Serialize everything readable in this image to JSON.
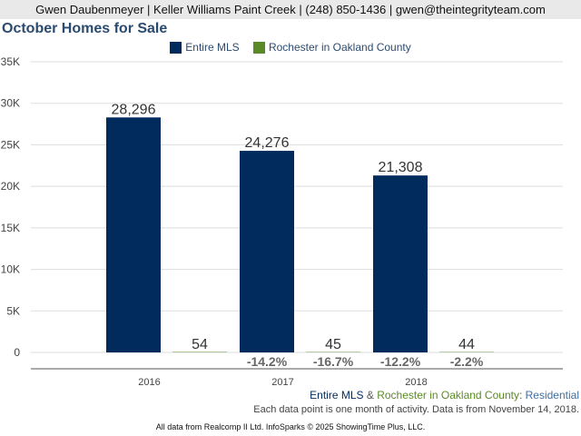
{
  "header": {
    "text": "Gwen Daubenmeyer | Keller Williams Paint Creek | (248) 850-1436 | gwen@theintegrityteam.com"
  },
  "legend": {
    "items": [
      {
        "label": "Entire MLS",
        "color": "#002b5c"
      },
      {
        "label": "Rochester in Oakland County",
        "color": "#5a8a28"
      }
    ]
  },
  "subtitle": {
    "part1": "Entire MLS",
    "amp": " & ",
    "part2": "Rochester in Oakland County",
    "colon": ": ",
    "property_type": "Residential"
  },
  "note": "Each data point is one month of activity. Data is from November 14, 2018.",
  "footer": "All data from Realcomp II Ltd. InfoSparks © 2025 ShowingTime Plus, LLC.",
  "chart_data": {
    "type": "bar",
    "title": "October Homes for Sale",
    "categories": [
      "2016",
      "2017",
      "2018"
    ],
    "y_ticks": [
      "0",
      "5K",
      "10K",
      "15K",
      "20K",
      "25K",
      "30K",
      "35K"
    ],
    "ylim": [
      0,
      35000
    ],
    "grid": true,
    "legend_position": "top-center",
    "series": [
      {
        "name": "Entire MLS",
        "color": "#002b5c",
        "values": [
          28296,
          24276,
          21308
        ],
        "labels": [
          "28,296",
          "24,276",
          "21,308"
        ],
        "changes": [
          "",
          "-14.2%",
          "-12.2%"
        ]
      },
      {
        "name": "Rochester in Oakland County",
        "color": "#5a8a28",
        "values": [
          54,
          45,
          44
        ],
        "labels": [
          "54",
          "45",
          "44"
        ],
        "changes": [
          "",
          "-16.7%",
          "-2.2%"
        ]
      }
    ]
  }
}
